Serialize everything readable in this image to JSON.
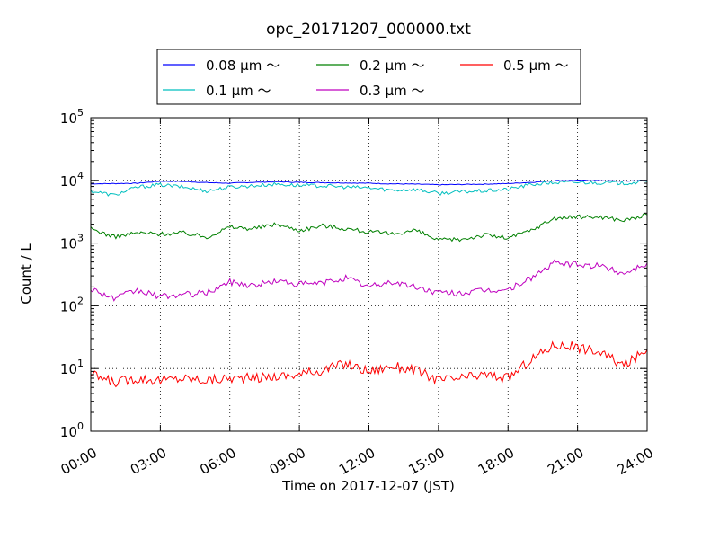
{
  "chart_data": {
    "type": "line",
    "title": "opc_20171207_000000.txt",
    "xlabel": "Time on 2017-12-07 (JST)",
    "ylabel": "Count / L",
    "yscale": "log",
    "ylim": [
      1,
      100000
    ],
    "xlim": [
      "2017-12-07 00:00",
      "2017-12-08 00:00"
    ],
    "grid": true,
    "legend_position": "top",
    "x_ticks": [
      "00:00",
      "03:00",
      "06:00",
      "09:00",
      "12:00",
      "15:00",
      "18:00",
      "21:00",
      "24:00"
    ],
    "x_ticks_hours": [
      0,
      3,
      6,
      9,
      12,
      15,
      18,
      21,
      24
    ],
    "y_ticks": [
      1,
      10,
      100,
      1000,
      10000,
      100000
    ],
    "y_tick_labels": [
      {
        "base": "10",
        "exp": "0"
      },
      {
        "base": "10",
        "exp": "1"
      },
      {
        "base": "10",
        "exp": "2"
      },
      {
        "base": "10",
        "exp": "3"
      },
      {
        "base": "10",
        "exp": "4"
      },
      {
        "base": "10",
        "exp": "5"
      }
    ],
    "x": [
      "00:00",
      "01:00",
      "02:00",
      "03:00",
      "04:00",
      "05:00",
      "06:00",
      "07:00",
      "08:00",
      "09:00",
      "10:00",
      "11:00",
      "12:00",
      "13:00",
      "14:00",
      "15:00",
      "16:00",
      "17:00",
      "18:00",
      "19:00",
      "20:00",
      "21:00",
      "22:00",
      "23:00",
      "24:00"
    ],
    "x_hours": [
      0,
      1,
      2,
      3,
      4,
      5,
      6,
      7,
      8,
      9,
      10,
      11,
      12,
      13,
      14,
      15,
      16,
      17,
      18,
      19,
      20,
      21,
      22,
      23,
      24
    ],
    "series": [
      {
        "name": "0.08 μm ～",
        "color": "#0000ff",
        "values": [
          8800,
          8900,
          9000,
          9700,
          9600,
          9200,
          9000,
          9300,
          9500,
          9300,
          9200,
          9100,
          9000,
          8800,
          8700,
          8500,
          8600,
          8700,
          8900,
          9300,
          9900,
          10000,
          9900,
          9700,
          10000
        ]
      },
      {
        "name": "0.1 μm ～",
        "color": "#00bfbf",
        "values": [
          6800,
          5800,
          7800,
          8500,
          7800,
          6800,
          7800,
          8200,
          8700,
          8300,
          8200,
          7800,
          7600,
          7000,
          7200,
          6200,
          6600,
          6800,
          7200,
          8600,
          9200,
          9300,
          9200,
          9000,
          9500
        ]
      },
      {
        "name": "0.2 μm ～",
        "color": "#008000",
        "values": [
          1700,
          1250,
          1450,
          1400,
          1450,
          1250,
          1800,
          1700,
          2000,
          1600,
          1900,
          1700,
          1500,
          1400,
          1600,
          1100,
          1150,
          1350,
          1200,
          1600,
          2500,
          2600,
          2600,
          2300,
          2800
        ]
      },
      {
        "name": "0.3 μm ～",
        "color": "#bf00bf",
        "values": [
          190,
          130,
          175,
          140,
          150,
          160,
          240,
          210,
          250,
          220,
          230,
          280,
          200,
          240,
          200,
          160,
          160,
          175,
          180,
          280,
          480,
          450,
          430,
          330,
          480
        ]
      },
      {
        "name": "0.5 μm ～",
        "color": "#ff0000",
        "values": [
          8,
          6,
          7,
          6.5,
          7,
          6.5,
          7,
          7,
          7.5,
          8,
          9.5,
          12,
          9,
          11,
          9.5,
          6.5,
          7,
          8,
          7,
          14,
          24,
          22,
          18,
          11,
          20
        ]
      }
    ]
  }
}
